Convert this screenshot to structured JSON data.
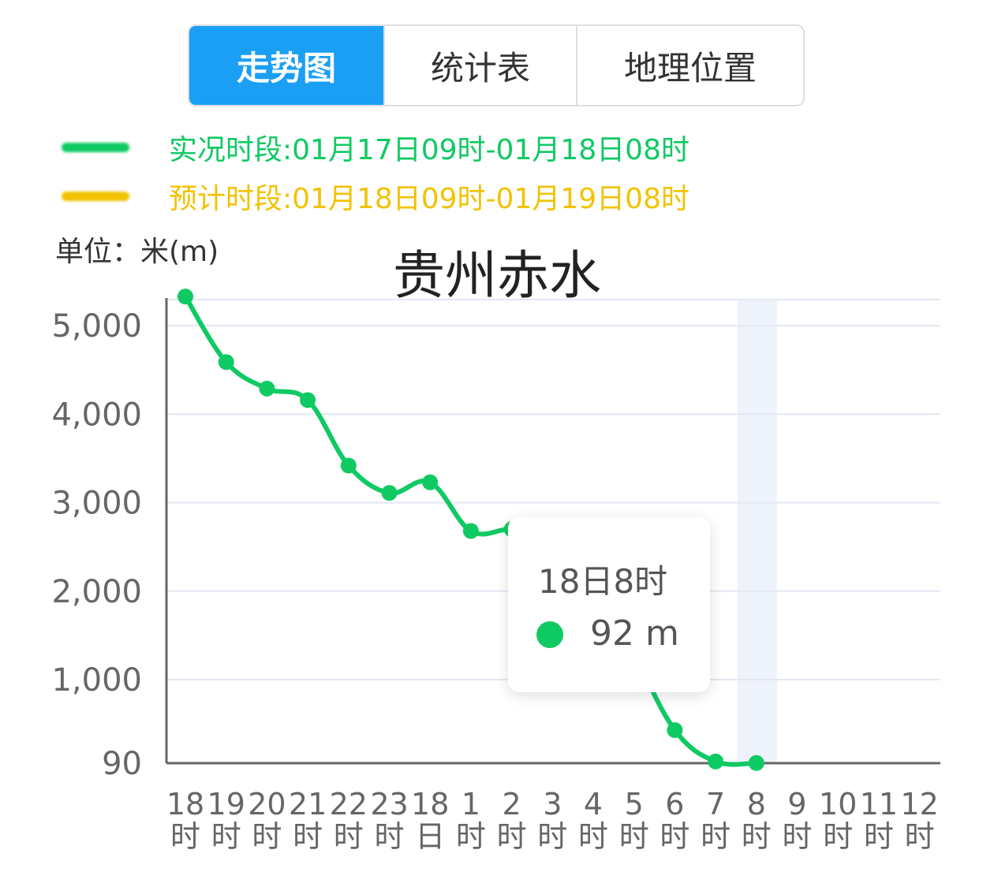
{
  "tabs": [
    {
      "label": "走势图",
      "active": true
    },
    {
      "label": "统计表",
      "active": false
    },
    {
      "label": "地理位置",
      "active": false
    }
  ],
  "legend": {
    "actual": {
      "text": "实况时段:01月17日09时-01月18日08时",
      "color": "#0fca63"
    },
    "forecast": {
      "text": "预计时段:01月18日09时-01月19日08时",
      "color": "#f2c200"
    }
  },
  "unit_label": "单位：米(m)",
  "tooltip": {
    "time": "18日8时",
    "value": "92 m",
    "dot_color": "#0fca63"
  },
  "chart_data": {
    "type": "line",
    "title": "贵州赤水",
    "y_ticks": [
      {
        "value": 90,
        "label": "90"
      },
      {
        "value": 1000,
        "label": "1,000"
      },
      {
        "value": 2000,
        "label": "2,000"
      },
      {
        "value": 3000,
        "label": "3,000"
      },
      {
        "value": 4000,
        "label": "4,000"
      },
      {
        "value": 5000,
        "label": "5,000"
      }
    ],
    "categories": [
      [
        "18",
        "时"
      ],
      [
        "19",
        "时"
      ],
      [
        "20",
        "时"
      ],
      [
        "21",
        "时"
      ],
      [
        "22",
        "时"
      ],
      [
        "23",
        "时"
      ],
      [
        "18",
        "日"
      ],
      [
        "1",
        "时"
      ],
      [
        "2",
        "时"
      ],
      [
        "3",
        "时"
      ],
      [
        "4",
        "时"
      ],
      [
        "5",
        "时"
      ],
      [
        "6",
        "时"
      ],
      [
        "7",
        "时"
      ],
      [
        "8",
        "时"
      ],
      [
        "9",
        "时"
      ],
      [
        "10",
        "时"
      ],
      [
        "11",
        "时"
      ],
      [
        "12",
        "时"
      ]
    ],
    "series": [
      {
        "values": [
          5330,
          4590,
          4290,
          4160,
          3420,
          3110,
          3230,
          2680,
          2700,
          2620,
          2200,
          1300,
          450,
          108,
          92,
          null,
          null,
          null,
          null
        ],
        "color": "#0fca63"
      }
    ],
    "highlight_index": 14,
    "ylim": [
      90,
      5400
    ],
    "grid": true
  }
}
